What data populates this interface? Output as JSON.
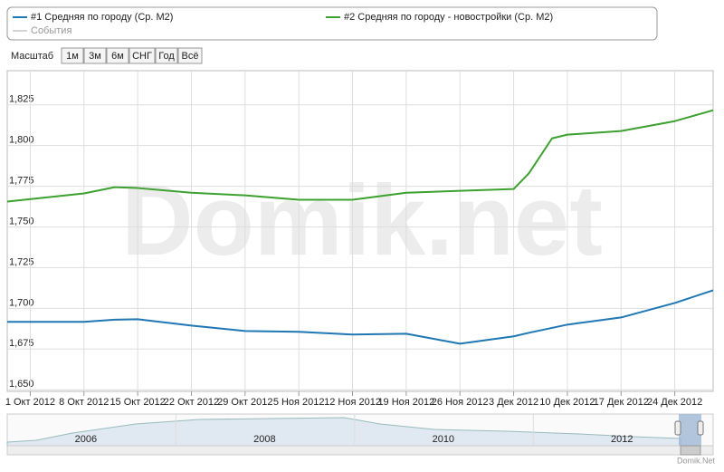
{
  "chart_data": {
    "type": "line",
    "x": [
      "2012-09-28",
      "2012-10-08",
      "2012-10-12",
      "2012-10-15",
      "2012-10-22",
      "2012-10-29",
      "2012-11-05",
      "2012-11-12",
      "2012-11-19",
      "2012-11-26",
      "2012-12-03",
      "2012-12-05",
      "2012-12-08",
      "2012-12-10",
      "2012-12-17",
      "2012-12-24",
      "2012-12-29"
    ],
    "series": [
      {
        "name": "#1 Средняя по городу (Ср. М2)",
        "color": "#1f77b4",
        "values": [
          1691.7,
          1691.7,
          1693,
          1693.3,
          1689.4,
          1686.1,
          1685.6,
          1683.9,
          1684.4,
          1678.3,
          1682.8,
          1685,
          1688,
          1690,
          1694.4,
          1703.3,
          1711.1
        ]
      },
      {
        "name": "#2 Средняя по городу - новостройки (Ср. М2)",
        "color": "#3ca12f",
        "values": [
          1765.6,
          1770.6,
          1774.4,
          1773.9,
          1771,
          1769.4,
          1766.7,
          1766.7,
          1771,
          1772.2,
          1773.3,
          1783,
          1804.4,
          1806.7,
          1808.9,
          1815,
          1821.7
        ]
      }
    ],
    "events_label": "События",
    "xlim": [
      "2012-09-28",
      "2012-12-29"
    ],
    "xticks": [
      {
        "value": "2012-10-01",
        "label": "1 Окт 2012"
      },
      {
        "value": "2012-10-08",
        "label": "8 Окт 2012"
      },
      {
        "value": "2012-10-15",
        "label": "15 Окт 2012"
      },
      {
        "value": "2012-10-22",
        "label": "22 Окт 2012"
      },
      {
        "value": "2012-10-29",
        "label": "29 Окт 2012"
      },
      {
        "value": "2012-11-05",
        "label": "5 Ноя 2012"
      },
      {
        "value": "2012-11-12",
        "label": "12 Ноя 2012"
      },
      {
        "value": "2012-11-19",
        "label": "19 Ноя 2012"
      },
      {
        "value": "2012-11-26",
        "label": "26 Ноя 2012"
      },
      {
        "value": "2012-12-03",
        "label": "3 Дек 2012"
      },
      {
        "value": "2012-12-10",
        "label": "10 Дек 2012"
      },
      {
        "value": "2012-12-17",
        "label": "17 Дек 2012"
      },
      {
        "value": "2012-12-24",
        "label": "24 Дек 2012"
      }
    ],
    "ylim": [
      1649,
      1846
    ],
    "yticks": [
      {
        "value": 1650,
        "label": "1,650"
      },
      {
        "value": 1675,
        "label": "1,675"
      },
      {
        "value": 1700,
        "label": "1,700"
      },
      {
        "value": 1725,
        "label": "1,725"
      },
      {
        "value": 1750,
        "label": "1,750"
      },
      {
        "value": 1775,
        "label": "1,775"
      },
      {
        "value": 1800,
        "label": "1,800"
      },
      {
        "value": 1825,
        "label": "1,825"
      }
    ],
    "grid": true
  },
  "range_selector": {
    "label": "Масштаб",
    "buttons": [
      "1м",
      "3м",
      "6м",
      "СНГ",
      "Год",
      "Всё"
    ]
  },
  "navigator": {
    "xlim": [
      2005.12,
      2013.02
    ],
    "xticks": [
      2006,
      2008,
      2010,
      2012
    ]
  },
  "watermark": "Domik.net",
  "credit": "Domik.Net"
}
